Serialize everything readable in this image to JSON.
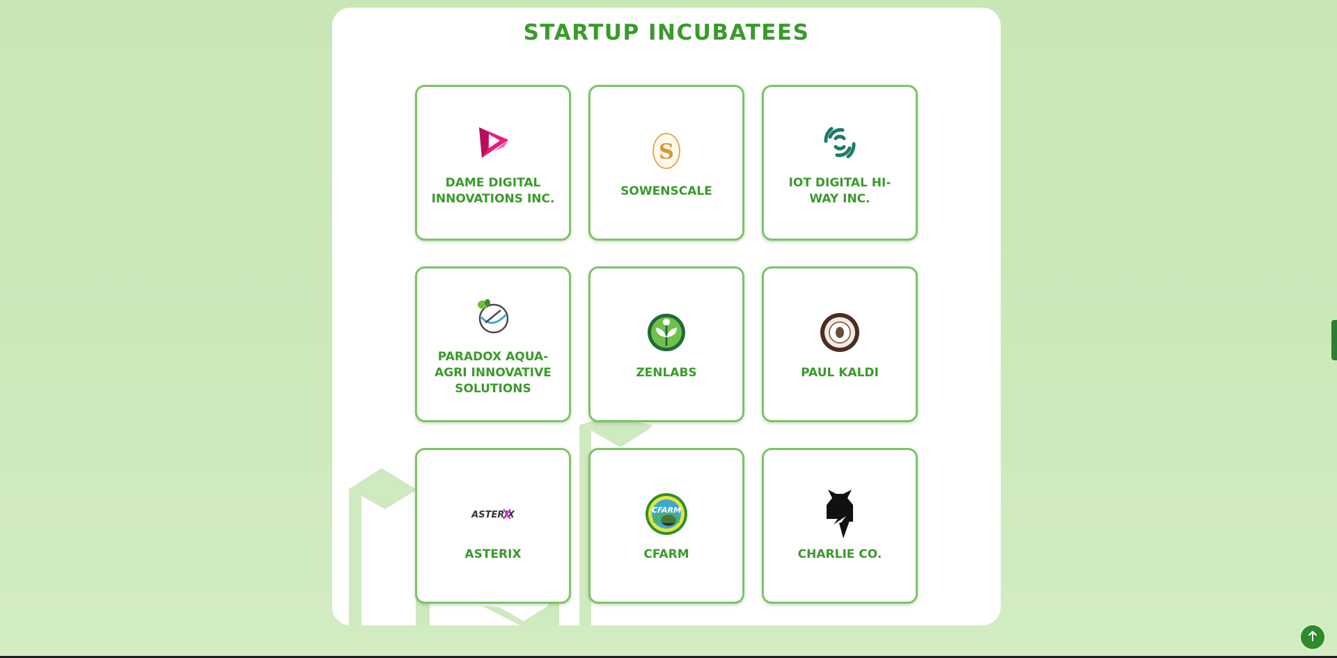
{
  "section": {
    "title": "STARTUP INCUBATEES"
  },
  "incubatees": [
    {
      "name": "DAME DIGITAL INNOVATIONS INC.",
      "logo": "dame-digital-logo"
    },
    {
      "name": "SOWENSCALE",
      "logo": "sowenscale-logo"
    },
    {
      "name": "IOT DIGITAL HI-WAY INC.",
      "logo": "iot-digital-logo"
    },
    {
      "name": "PARADOX AQUA-AGRI INNOVATIVE SOLUTIONS",
      "logo": "paradox-aqua-agri-logo"
    },
    {
      "name": "ZENLABS",
      "logo": "zenlabs-logo"
    },
    {
      "name": "PAUL KALDI",
      "logo": "paul-kaldi-logo"
    },
    {
      "name": "ASTERIX",
      "logo": "asterix-logo",
      "logo_text": "ASTERiX"
    },
    {
      "name": "CFARM",
      "logo": "cfarm-logo",
      "logo_text": "CFARM"
    },
    {
      "name": "CHARLIE CO.",
      "logo": "charlie-co-logo"
    }
  ],
  "back_to_top": {
    "icon": "arrow-up-icon"
  },
  "colors": {
    "page_background": "#c9e7b6",
    "accent_green": "#3a9a2c",
    "card_border": "#7cc465",
    "button_green": "#2e8b2a"
  }
}
